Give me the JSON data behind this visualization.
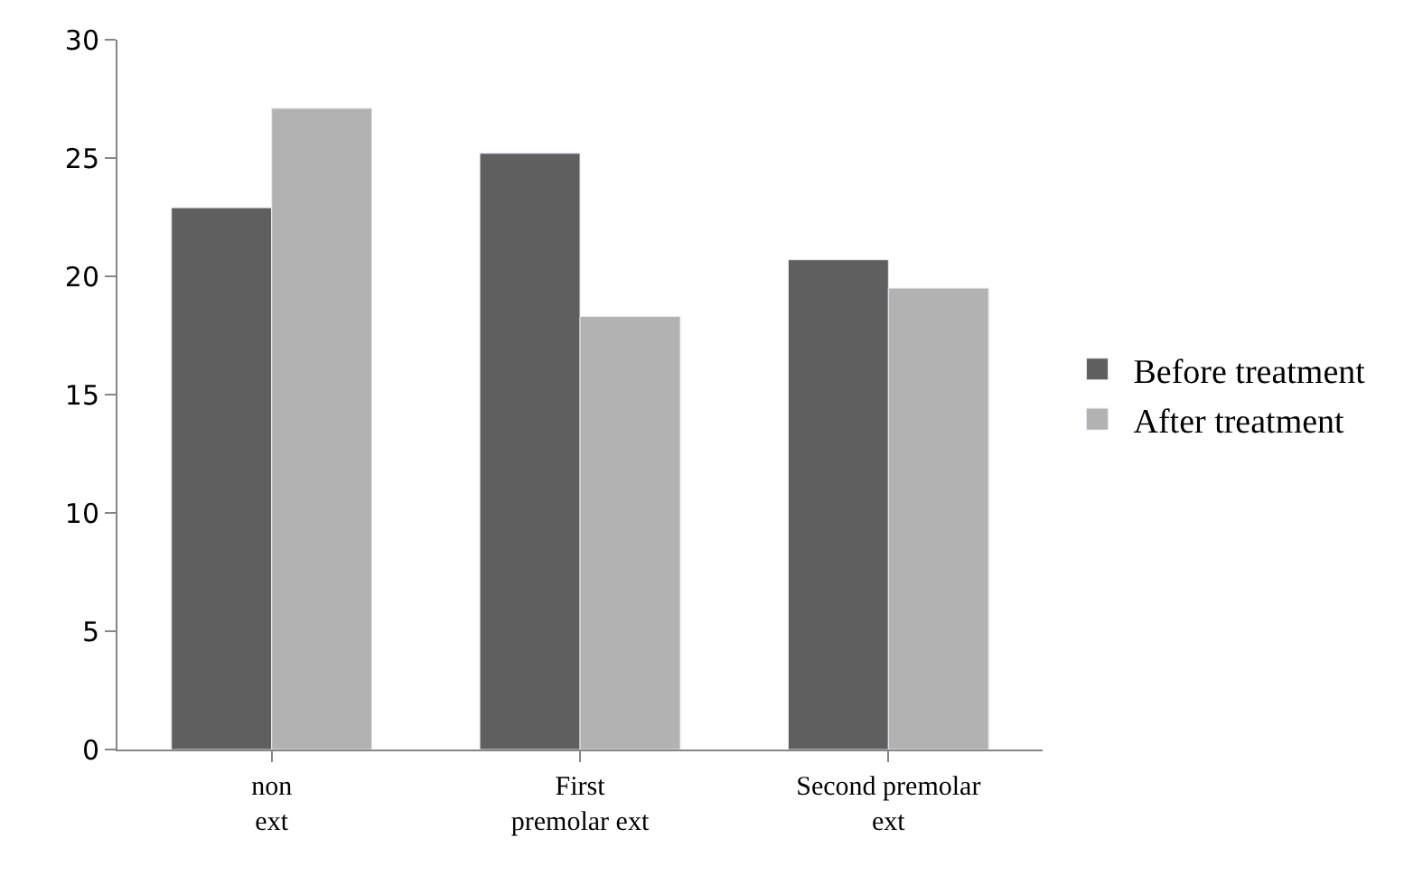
{
  "chart_data": {
    "type": "bar",
    "categories": [
      "non ext",
      "First premolar ext",
      "Second premolar ext"
    ],
    "series": [
      {
        "name": "Before treatment",
        "color": "#5f5f5f",
        "values": [
          22.9,
          25.2,
          20.7
        ]
      },
      {
        "name": "After treatment",
        "color": "#b2b2b2",
        "values": [
          27.1,
          18.3,
          19.5
        ]
      }
    ],
    "ylim": [
      0,
      30
    ],
    "yticks": [
      0,
      5,
      10,
      15,
      20,
      25,
      30
    ],
    "grid": false,
    "legend": "right"
  }
}
